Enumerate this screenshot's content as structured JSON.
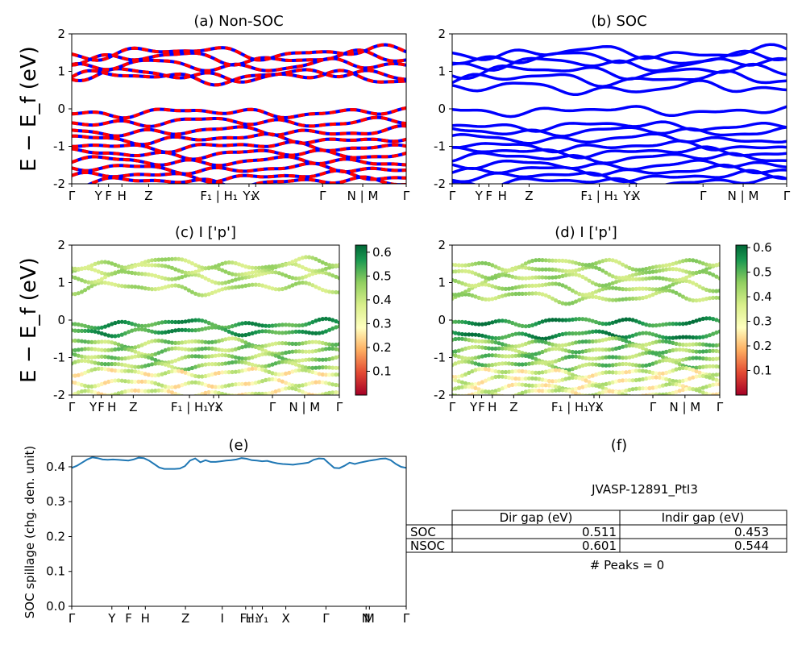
{
  "chart_data": [
    {
      "id": "a",
      "type": "line",
      "title": "(a) Non-SOC",
      "ylabel": "E − E_f (eV)",
      "ylim": [
        -2,
        2
      ],
      "yticks": [
        "-2",
        "-1",
        "0",
        "1",
        "2"
      ],
      "xticks": [
        "Γ",
        "Y",
        "F",
        "H",
        "Z",
        "F₁ | H₁",
        "Y₁",
        "X",
        "Γ",
        "N | M",
        "Γ"
      ],
      "series_colors": [
        "#ff0000",
        "#0000ff"
      ],
      "bands_upper": [
        0.85,
        0.9,
        1.15,
        1.35,
        1.5
      ],
      "bands_lower": [
        -0.1,
        -0.35,
        -0.6,
        -0.8,
        -1.0,
        -1.2,
        -1.4,
        -1.6,
        -1.8,
        -1.95
      ]
    },
    {
      "id": "b",
      "type": "line",
      "title": "(b) SOC",
      "ylim": [
        -2,
        2
      ],
      "yticks": [
        "-2",
        "-1",
        "0",
        "1",
        "2"
      ],
      "xticks": [
        "Γ",
        "Y",
        "F",
        "H",
        "Z",
        "F₁ | H₁",
        "Y₁",
        "X",
        "Γ",
        "N | M",
        "Γ"
      ],
      "series_colors": [
        "#0000ff"
      ],
      "bands_upper": [
        0.55,
        0.8,
        1.0,
        1.2,
        1.35,
        1.5
      ],
      "bands_lower": [
        -0.05,
        -0.45,
        -0.6,
        -0.8,
        -1.0,
        -1.15,
        -1.3,
        -1.5,
        -1.65,
        -1.8,
        -1.95
      ]
    },
    {
      "id": "c",
      "type": "scatter",
      "title": "(c)  I ['p']",
      "ylabel": "E − E_f (eV)",
      "ylim": [
        -2,
        2
      ],
      "yticks": [
        "-2",
        "-1",
        "0",
        "1",
        "2"
      ],
      "xticks": [
        "Γ",
        "Y",
        "F",
        "H",
        "Z",
        "F₁ | H₁",
        "Y₁",
        "X",
        "Γ",
        "N | M",
        "Γ"
      ],
      "colorbar": {
        "ticks": [
          "0.1",
          "0.2",
          "0.3",
          "0.4",
          "0.5",
          "0.6"
        ],
        "range": [
          0.0,
          0.63
        ]
      },
      "bands_upper": [
        0.85,
        1.15,
        1.35,
        1.5
      ],
      "bands_lower": [
        -0.1,
        -0.3,
        -0.6,
        -0.8,
        -1.0,
        -1.2,
        -1.4,
        -1.7,
        -1.95
      ]
    },
    {
      "id": "d",
      "type": "scatter",
      "title": "(d) I ['p']",
      "ylim": [
        -2,
        2
      ],
      "yticks": [
        "-2",
        "-1",
        "0",
        "1",
        "2"
      ],
      "xticks": [
        "Γ",
        "Y",
        "F",
        "H",
        "Z",
        "F₁ | H₁",
        "Y₁",
        "X",
        "Γ",
        "N | M",
        "Γ"
      ],
      "colorbar": {
        "ticks": [
          "0.1",
          "0.2",
          "0.3",
          "0.4",
          "0.5",
          "0.6"
        ],
        "range": [
          0.0,
          0.61
        ]
      },
      "bands_upper": [
        0.6,
        0.85,
        1.1,
        1.3,
        1.5
      ],
      "bands_lower": [
        -0.05,
        -0.4,
        -0.6,
        -0.8,
        -1.0,
        -1.2,
        -1.4,
        -1.6,
        -1.8,
        -1.95
      ]
    },
    {
      "id": "e",
      "type": "line",
      "title": "(e)",
      "ylabel": "SOC spillage (chg. den. unit)",
      "ylim": [
        0.0,
        0.43
      ],
      "yticks": [
        "0.0",
        "0.1",
        "0.2",
        "0.3",
        "0.4"
      ],
      "xticks": [
        "Γ",
        "Y",
        "F",
        "H",
        "Z",
        "I",
        "F₁",
        "H₁",
        "Y₁",
        "X",
        "Γ",
        "N",
        "M",
        "Γ"
      ],
      "series_colors": [
        "#1f77b4"
      ],
      "values": [
        0.397,
        0.403,
        0.412,
        0.421,
        0.427,
        0.425,
        0.421,
        0.42,
        0.421,
        0.42,
        0.419,
        0.418,
        0.421,
        0.426,
        0.425,
        0.418,
        0.408,
        0.398,
        0.394,
        0.394,
        0.394,
        0.395,
        0.402,
        0.418,
        0.424,
        0.413,
        0.419,
        0.414,
        0.414,
        0.416,
        0.418,
        0.419,
        0.421,
        0.425,
        0.423,
        0.419,
        0.418,
        0.416,
        0.417,
        0.413,
        0.41,
        0.408,
        0.407,
        0.406,
        0.408,
        0.41,
        0.412,
        0.42,
        0.424,
        0.423,
        0.41,
        0.397,
        0.396,
        0.403,
        0.412,
        0.408,
        0.412,
        0.415,
        0.418,
        0.42,
        0.423,
        0.424,
        0.419,
        0.408,
        0.4,
        0.397
      ]
    }
  ],
  "panel_f": {
    "title": "(f)",
    "material": "JVASP-12891_PtI3",
    "headers": [
      "Dir gap (eV)",
      "Indir gap (eV)"
    ],
    "rows": [
      {
        "label": "SOC",
        "dir": "0.511",
        "indir": "0.453"
      },
      {
        "label": "NSOC",
        "dir": "0.601",
        "indir": "0.544"
      }
    ],
    "peaks": "# Peaks = 0"
  }
}
